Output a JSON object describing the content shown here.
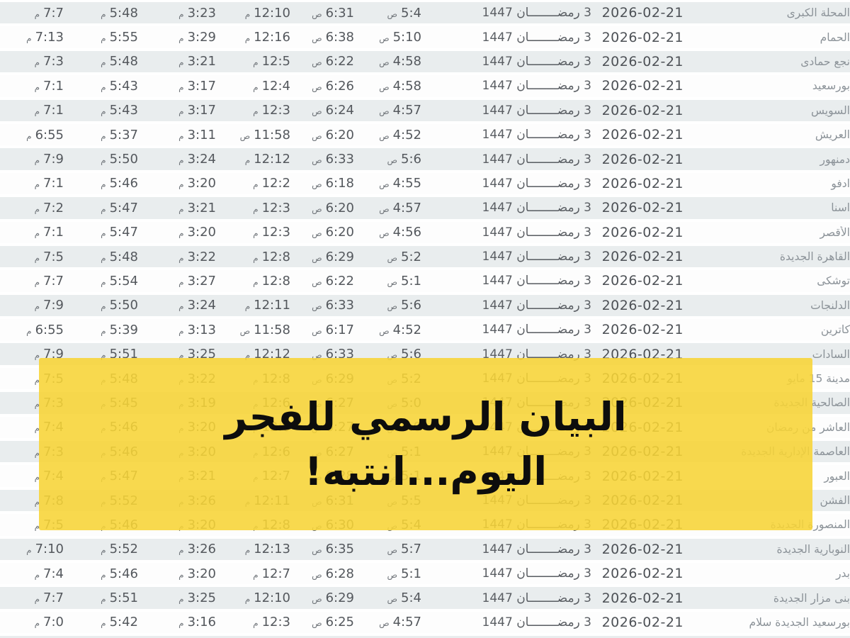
{
  "banner": {
    "line1": "البيان الرسمي للفجر",
    "line2": "اليوم...انتبه!",
    "background_color": "#f7d436",
    "text_color": "#0d0d0d"
  },
  "table": {
    "gregorian_date": "2026-02-21",
    "hijri_date": "3 رمضــــــــان 1447",
    "row_shade_color": "#e9edee",
    "time_text_color": "#54585d",
    "city_text_color": "#8b9298",
    "rows": [
      {
        "city": "المحلة الكبرى",
        "fajr": {
          "time": "5:4",
          "period": "ص"
        },
        "sunrise": {
          "time": "6:31",
          "period": "ص"
        },
        "dhuhr": {
          "time": "12:10",
          "period": "م"
        },
        "asr": {
          "time": "3:23",
          "period": "م"
        },
        "maghrib": {
          "time": "5:48",
          "period": "م"
        },
        "isha": {
          "time": "7:7",
          "period": "م"
        }
      },
      {
        "city": "الحمام",
        "fajr": {
          "time": "5:10",
          "period": "ص"
        },
        "sunrise": {
          "time": "6:38",
          "period": "ص"
        },
        "dhuhr": {
          "time": "12:16",
          "period": "م"
        },
        "asr": {
          "time": "3:29",
          "period": "م"
        },
        "maghrib": {
          "time": "5:55",
          "period": "م"
        },
        "isha": {
          "time": "7:13",
          "period": "م"
        }
      },
      {
        "city": "نجع حمادى",
        "fajr": {
          "time": "4:58",
          "period": "ص"
        },
        "sunrise": {
          "time": "6:22",
          "period": "ص"
        },
        "dhuhr": {
          "time": "12:5",
          "period": "م"
        },
        "asr": {
          "time": "3:21",
          "period": "م"
        },
        "maghrib": {
          "time": "5:48",
          "period": "م"
        },
        "isha": {
          "time": "7:3",
          "period": "م"
        }
      },
      {
        "city": "بورسعيد",
        "fajr": {
          "time": "4:58",
          "period": "ص"
        },
        "sunrise": {
          "time": "6:26",
          "period": "ص"
        },
        "dhuhr": {
          "time": "12:4",
          "period": "م"
        },
        "asr": {
          "time": "3:17",
          "period": "م"
        },
        "maghrib": {
          "time": "5:43",
          "period": "م"
        },
        "isha": {
          "time": "7:1",
          "period": "م"
        }
      },
      {
        "city": "السويس",
        "fajr": {
          "time": "4:57",
          "period": "ص"
        },
        "sunrise": {
          "time": "6:24",
          "period": "ص"
        },
        "dhuhr": {
          "time": "12:3",
          "period": "م"
        },
        "asr": {
          "time": "3:17",
          "period": "م"
        },
        "maghrib": {
          "time": "5:43",
          "period": "م"
        },
        "isha": {
          "time": "7:1",
          "period": "م"
        }
      },
      {
        "city": "العريش",
        "fajr": {
          "time": "4:52",
          "period": "ص"
        },
        "sunrise": {
          "time": "6:20",
          "period": "ص"
        },
        "dhuhr": {
          "time": "11:58",
          "period": "ص"
        },
        "asr": {
          "time": "3:11",
          "period": "م"
        },
        "maghrib": {
          "time": "5:37",
          "period": "م"
        },
        "isha": {
          "time": "6:55",
          "period": "م"
        }
      },
      {
        "city": "دمنهور",
        "fajr": {
          "time": "5:6",
          "period": "ص"
        },
        "sunrise": {
          "time": "6:33",
          "period": "ص"
        },
        "dhuhr": {
          "time": "12:12",
          "period": "م"
        },
        "asr": {
          "time": "3:24",
          "period": "م"
        },
        "maghrib": {
          "time": "5:50",
          "period": "م"
        },
        "isha": {
          "time": "7:9",
          "period": "م"
        }
      },
      {
        "city": "ادفو",
        "fajr": {
          "time": "4:55",
          "period": "ص"
        },
        "sunrise": {
          "time": "6:18",
          "period": "ص"
        },
        "dhuhr": {
          "time": "12:2",
          "period": "م"
        },
        "asr": {
          "time": "3:20",
          "period": "م"
        },
        "maghrib": {
          "time": "5:46",
          "period": "م"
        },
        "isha": {
          "time": "7:1",
          "period": "م"
        }
      },
      {
        "city": "اسنا",
        "fajr": {
          "time": "4:57",
          "period": "ص"
        },
        "sunrise": {
          "time": "6:20",
          "period": "ص"
        },
        "dhuhr": {
          "time": "12:3",
          "period": "م"
        },
        "asr": {
          "time": "3:21",
          "period": "م"
        },
        "maghrib": {
          "time": "5:47",
          "period": "م"
        },
        "isha": {
          "time": "7:2",
          "period": "م"
        }
      },
      {
        "city": "الأقصر",
        "fajr": {
          "time": "4:56",
          "period": "ص"
        },
        "sunrise": {
          "time": "6:20",
          "period": "ص"
        },
        "dhuhr": {
          "time": "12:3",
          "period": "م"
        },
        "asr": {
          "time": "3:20",
          "period": "م"
        },
        "maghrib": {
          "time": "5:47",
          "period": "م"
        },
        "isha": {
          "time": "7:1",
          "period": "م"
        }
      },
      {
        "city": "القاهرة الجديدة",
        "fajr": {
          "time": "5:2",
          "period": "ص"
        },
        "sunrise": {
          "time": "6:29",
          "period": "ص"
        },
        "dhuhr": {
          "time": "12:8",
          "period": "م"
        },
        "asr": {
          "time": "3:22",
          "period": "م"
        },
        "maghrib": {
          "time": "5:48",
          "period": "م"
        },
        "isha": {
          "time": "7:5",
          "period": "م"
        }
      },
      {
        "city": "توشكى",
        "fajr": {
          "time": "5:1",
          "period": "ص"
        },
        "sunrise": {
          "time": "6:22",
          "period": "ص"
        },
        "dhuhr": {
          "time": "12:8",
          "period": "م"
        },
        "asr": {
          "time": "3:27",
          "period": "م"
        },
        "maghrib": {
          "time": "5:54",
          "period": "م"
        },
        "isha": {
          "time": "7:7",
          "period": "م"
        }
      },
      {
        "city": "الدلنجات",
        "fajr": {
          "time": "5:6",
          "period": "ص"
        },
        "sunrise": {
          "time": "6:33",
          "period": "ص"
        },
        "dhuhr": {
          "time": "12:11",
          "period": "م"
        },
        "asr": {
          "time": "3:24",
          "period": "م"
        },
        "maghrib": {
          "time": "5:50",
          "period": "م"
        },
        "isha": {
          "time": "7:9",
          "period": "م"
        }
      },
      {
        "city": "كاترين",
        "fajr": {
          "time": "4:52",
          "period": "ص"
        },
        "sunrise": {
          "time": "6:17",
          "period": "ص"
        },
        "dhuhr": {
          "time": "11:58",
          "period": "ص"
        },
        "asr": {
          "time": "3:13",
          "period": "م"
        },
        "maghrib": {
          "time": "5:39",
          "period": "م"
        },
        "isha": {
          "time": "6:55",
          "period": "م"
        }
      },
      {
        "city": "السادات",
        "fajr": {
          "time": "5:6",
          "period": "ص"
        },
        "sunrise": {
          "time": "6:33",
          "period": "ص"
        },
        "dhuhr": {
          "time": "12:12",
          "period": "م"
        },
        "asr": {
          "time": "3:25",
          "period": "م"
        },
        "maghrib": {
          "time": "5:51",
          "period": "م"
        },
        "isha": {
          "time": "7:9",
          "period": "م"
        }
      },
      {
        "city": "مدينة 15 مايو",
        "fajr": {
          "time": "5:2",
          "period": "ص"
        },
        "sunrise": {
          "time": "6:29",
          "period": "ص"
        },
        "dhuhr": {
          "time": "12:8",
          "period": "م"
        },
        "asr": {
          "time": "3:22",
          "period": "م"
        },
        "maghrib": {
          "time": "5:48",
          "period": "م"
        },
        "isha": {
          "time": "7:5",
          "period": "م"
        }
      },
      {
        "city": "الصالحية الجديدة",
        "fajr": {
          "time": "5:0",
          "period": "ص"
        },
        "sunrise": {
          "time": "6:27",
          "period": "ص"
        },
        "dhuhr": {
          "time": "12:6",
          "period": "م"
        },
        "asr": {
          "time": "3:19",
          "period": "م"
        },
        "maghrib": {
          "time": "5:45",
          "period": "م"
        },
        "isha": {
          "time": "7:3",
          "period": "م"
        }
      },
      {
        "city": "العاشر من رمضان",
        "fajr": {
          "time": "5:0",
          "period": "ص"
        },
        "sunrise": {
          "time": "6:27",
          "period": "ص"
        },
        "dhuhr": {
          "time": "12:6",
          "period": "م"
        },
        "asr": {
          "time": "3:20",
          "period": "م"
        },
        "maghrib": {
          "time": "5:46",
          "period": "م"
        },
        "isha": {
          "time": "7:4",
          "period": "م"
        }
      },
      {
        "city": "العاصمة الإدارية الجديدة",
        "fajr": {
          "time": "5:1",
          "period": "ص"
        },
        "sunrise": {
          "time": "6:27",
          "period": "ص"
        },
        "dhuhr": {
          "time": "12:6",
          "period": "م"
        },
        "asr": {
          "time": "3:20",
          "period": "م"
        },
        "maghrib": {
          "time": "5:46",
          "period": "م"
        },
        "isha": {
          "time": "7:3",
          "period": "م"
        }
      },
      {
        "city": "العبور",
        "fajr": {
          "time": "5:1",
          "period": "ص"
        },
        "sunrise": {
          "time": "6:28",
          "period": "ص"
        },
        "dhuhr": {
          "time": "12:7",
          "period": "م"
        },
        "asr": {
          "time": "3:21",
          "period": "م"
        },
        "maghrib": {
          "time": "5:47",
          "period": "م"
        },
        "isha": {
          "time": "7:4",
          "period": "م"
        }
      },
      {
        "city": "الفشن",
        "fajr": {
          "time": "5:5",
          "period": "ص"
        },
        "sunrise": {
          "time": "6:31",
          "period": "ص"
        },
        "dhuhr": {
          "time": "12:11",
          "period": "م"
        },
        "asr": {
          "time": "3:26",
          "period": "م"
        },
        "maghrib": {
          "time": "5:52",
          "period": "م"
        },
        "isha": {
          "time": "7:8",
          "period": "م"
        }
      },
      {
        "city": "المنصورة الجديدة",
        "fajr": {
          "time": "5:4",
          "period": "ص"
        },
        "sunrise": {
          "time": "6:30",
          "period": "ص"
        },
        "dhuhr": {
          "time": "12:8",
          "period": "م"
        },
        "asr": {
          "time": "3:20",
          "period": "م"
        },
        "maghrib": {
          "time": "5:46",
          "period": "م"
        },
        "isha": {
          "time": "7:5",
          "period": "م"
        }
      },
      {
        "city": "النوبارية الجديدة",
        "fajr": {
          "time": "5:7",
          "period": "ص"
        },
        "sunrise": {
          "time": "6:35",
          "period": "ص"
        },
        "dhuhr": {
          "time": "12:13",
          "period": "م"
        },
        "asr": {
          "time": "3:26",
          "period": "م"
        },
        "maghrib": {
          "time": "5:52",
          "period": "م"
        },
        "isha": {
          "time": "7:10",
          "period": "م"
        }
      },
      {
        "city": "بدر",
        "fajr": {
          "time": "5:1",
          "period": "ص"
        },
        "sunrise": {
          "time": "6:28",
          "period": "ص"
        },
        "dhuhr": {
          "time": "12:7",
          "period": "م"
        },
        "asr": {
          "time": "3:20",
          "period": "م"
        },
        "maghrib": {
          "time": "5:46",
          "period": "م"
        },
        "isha": {
          "time": "7:4",
          "period": "م"
        }
      },
      {
        "city": "بنى مزار الجديدة",
        "fajr": {
          "time": "5:4",
          "period": "ص"
        },
        "sunrise": {
          "time": "6:29",
          "period": "ص"
        },
        "dhuhr": {
          "time": "12:10",
          "period": "م"
        },
        "asr": {
          "time": "3:25",
          "period": "م"
        },
        "maghrib": {
          "time": "5:51",
          "period": "م"
        },
        "isha": {
          "time": "7:7",
          "period": "م"
        }
      },
      {
        "city": "بورسعيد الجديدة سلام",
        "fajr": {
          "time": "4:57",
          "period": "ص"
        },
        "sunrise": {
          "time": "6:25",
          "period": "ص"
        },
        "dhuhr": {
          "time": "12:3",
          "period": "م"
        },
        "asr": {
          "time": "3:16",
          "period": "م"
        },
        "maghrib": {
          "time": "5:42",
          "period": "م"
        },
        "isha": {
          "time": "7:0",
          "period": "م"
        }
      }
    ]
  }
}
